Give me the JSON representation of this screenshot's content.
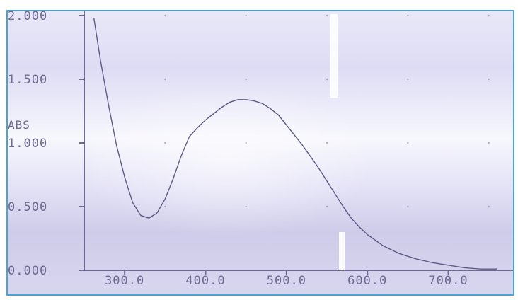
{
  "chart_data": {
    "type": "line",
    "title": "",
    "xlabel": "",
    "ylabel": "ABS",
    "xlim": [
      250,
      780
    ],
    "ylim": [
      0.0,
      2.0
    ],
    "x_ticks": [
      300,
      400,
      500,
      600,
      700
    ],
    "x_tick_labels": [
      "300.0",
      "400.0",
      "500.0",
      "600.0",
      "700.0"
    ],
    "y_ticks": [
      0.0,
      0.5,
      1.0,
      1.5,
      2.0
    ],
    "y_tick_labels": [
      "0.000",
      "0.500",
      "1.000",
      "1.500",
      "2.000"
    ],
    "grid": "dotted",
    "legend": "none",
    "series": [
      {
        "x": [
          262,
          270,
          280,
          290,
          300,
          310,
          320,
          330,
          340,
          350,
          360,
          370,
          380,
          390,
          400,
          410,
          420,
          430,
          440,
          450,
          460,
          470,
          480,
          490,
          500,
          510,
          520,
          530,
          540,
          550,
          560,
          570,
          580,
          590,
          600,
          620,
          640,
          660,
          680,
          700,
          720,
          740,
          760
        ],
        "y": [
          1.98,
          1.65,
          1.3,
          0.98,
          0.73,
          0.53,
          0.43,
          0.41,
          0.45,
          0.56,
          0.72,
          0.9,
          1.05,
          1.12,
          1.18,
          1.23,
          1.28,
          1.32,
          1.34,
          1.34,
          1.33,
          1.31,
          1.27,
          1.22,
          1.14,
          1.06,
          0.98,
          0.89,
          0.8,
          0.7,
          0.6,
          0.5,
          0.41,
          0.34,
          0.28,
          0.19,
          0.13,
          0.09,
          0.06,
          0.04,
          0.02,
          0.01,
          0.01
        ]
      }
    ],
    "colors": {
      "line": "#5d5a86",
      "axis": "#6d6a92",
      "background": "#dcdaf2",
      "glare": "#ffffff"
    }
  }
}
